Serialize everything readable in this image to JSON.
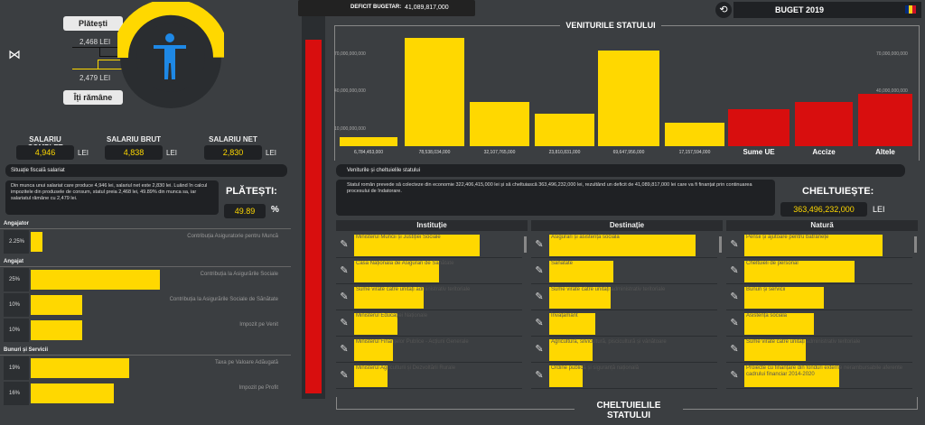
{
  "header": {
    "deficit_label": "DEFICIT BUGETAR:",
    "deficit_value": "41,089,817,000",
    "budget_title": "BUGET 2019"
  },
  "salary_widget": {
    "platesti_label": "Plătești",
    "platesti_value": "2,468 LEI",
    "ramane_value": "2,479 LEI",
    "ramane_label": "Îți rămâne",
    "gauge_share": 0.4989
  },
  "salary": {
    "complet_label": "SALARIU COMPLET",
    "complet_value": "4,946",
    "brut_label": "SALARIU BRUT",
    "brut_value": "4,838",
    "net_label": "SALARIU NET",
    "net_value": "2,830",
    "unit": "LEI"
  },
  "fiscal": {
    "title": "Situație fiscală salariat",
    "text": "Din munca unui salariat care produce 4,946 lei, salariul net este 2,830 lei. Luând în calcul impozitele din produsele de consum, statul preia 2,468 lei, 49.89% din munca sa, iar salariatul rămâne cu 2,479 lei.",
    "platesti_label": "PLĂTEȘTI:",
    "percent_value": "49.89",
    "percent_sign": "%"
  },
  "groups": [
    {
      "title": "Angajator",
      "rows": [
        {
          "pct": "2.25%",
          "label": "Contribuția Asiguratorie pentru Muncă",
          "share": 0.0225
        }
      ]
    },
    {
      "title": "Angajat",
      "rows": [
        {
          "pct": "25%",
          "label": "Contribuția la Asigurările Sociale",
          "share": 0.25
        },
        {
          "pct": "10%",
          "label": "Contribuția la Asigurările Sociale de Sănătate",
          "share": 0.1
        },
        {
          "pct": "10%",
          "label": "Impozit pe Venit",
          "share": 0.1
        }
      ]
    },
    {
      "title": "Bunuri și Servicii",
      "rows": [
        {
          "pct": "19%",
          "label": "Taxa pe Valoare Adăugată",
          "share": 0.19
        },
        {
          "pct": "16%",
          "label": "Impozit pe Profit",
          "share": 0.16
        }
      ]
    }
  ],
  "revenues": {
    "title": "VENITURILE STATULUI",
    "left_ticks": [
      "70,000,000,000",
      "40,000,000,000",
      "10,000,000,000"
    ],
    "right_ticks": [
      "70,000,000,000",
      "40,000,000,000"
    ]
  },
  "chart_data": {
    "type": "bar",
    "title": "VENITURILE STATULUI",
    "categories": [
      "6,784,453,000",
      "78,538,034,000",
      "32,107,765,000",
      "23,810,831,000",
      "69,647,956,000",
      "17,157,594,000",
      "Sume UE",
      "Accize",
      "Altele"
    ],
    "values": [
      6784453000,
      78538034000,
      32107765000,
      23810831000,
      69647956000,
      17157594000,
      27000000000,
      32000000000,
      38000000000
    ],
    "colors": [
      "#ffd800",
      "#ffd800",
      "#ffd800",
      "#ffd800",
      "#ffd800",
      "#ffd800",
      "#d80e0e",
      "#d80e0e",
      "#d80e0e"
    ],
    "ylim": [
      0,
      80000000000
    ]
  },
  "summary": {
    "title": "Veniturile și cheltuielile statului",
    "text": "Statul român prevede să colecteze din economie 322,406,415,000 lei și să cheltuiască 363,496,232,000 lei, rezultând un deficit de 41,089,817,000 lei care va fi finanțat prin continuarea procesului de îndatorare.",
    "cheltuieste_label": "CHELTUIEȘTE:",
    "cheltuieste_value": "363,496,232,000",
    "unit": "LEI"
  },
  "tables": {
    "institutie": {
      "title": "Instituție",
      "items": [
        {
          "label": "Ministerul Muncii și Justiției Sociale",
          "share": 0.82
        },
        {
          "label": "Casa Națională de Asigurări de Sănătate",
          "share": 0.55
        },
        {
          "label": "Sume virate către unități administrativ teritoriale",
          "share": 0.45
        },
        {
          "label": "Ministerul Educației Naționale",
          "share": 0.28
        },
        {
          "label": "Ministerul Finanțelor Publice - Acțiuni Generale",
          "share": 0.25
        },
        {
          "label": "Ministerul Agriculturii și Dezvoltării Rurale",
          "share": 0.22
        }
      ]
    },
    "destinatie": {
      "title": "Destinație",
      "items": [
        {
          "label": "Asigurări și asistență socială",
          "share": 0.95
        },
        {
          "label": "Sănătate",
          "share": 0.42
        },
        {
          "label": "Sume virate către unități administrativ teritoriale",
          "share": 0.4
        },
        {
          "label": "Învățământ",
          "share": 0.3
        },
        {
          "label": "Agricultură, silvicultură, piscicultură și vânătoare",
          "share": 0.28
        },
        {
          "label": "Ordine publică și siguranță națională",
          "share": 0.22
        }
      ]
    },
    "natura": {
      "title": "Natură",
      "items": [
        {
          "label": "Pensii și ajutoare pentru bătrânețe",
          "share": 0.9
        },
        {
          "label": "Cheltuieli de personal",
          "share": 0.72
        },
        {
          "label": "Bunuri și servicii",
          "share": 0.52
        },
        {
          "label": "Asistență socială",
          "share": 0.45
        },
        {
          "label": "Sume virate către unități administrativ teritoriale",
          "share": 0.4
        },
        {
          "label": "Proiecte cu finanțare din fonduri externe nerambursabile aferente cadrului financiar 2014-2020",
          "share": 0.62
        }
      ]
    }
  },
  "footer": {
    "expenses_title": "CHELTUIELILE STATULUI"
  }
}
